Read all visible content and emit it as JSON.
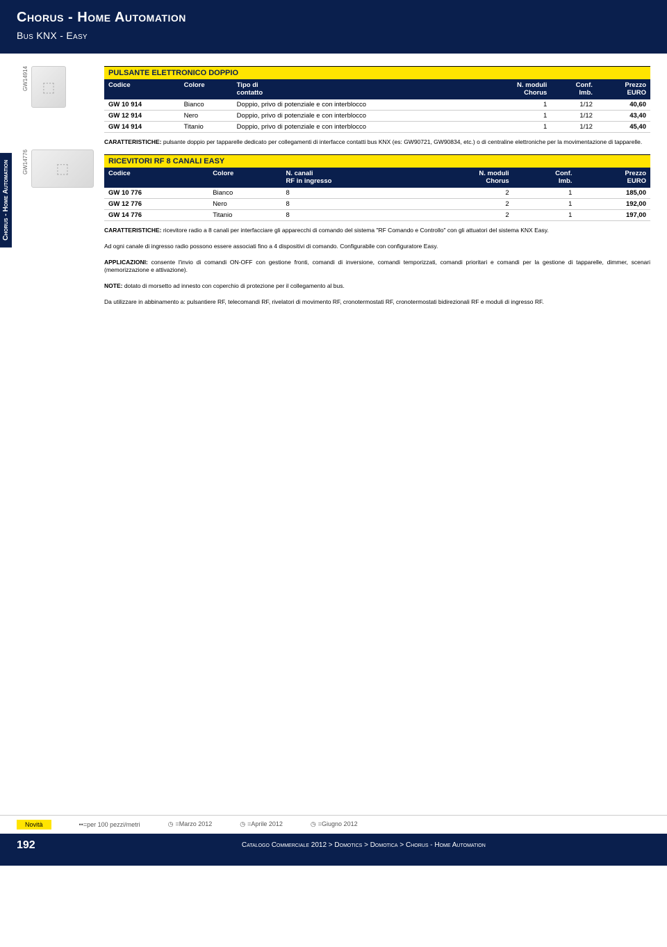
{
  "header": {
    "title": "Chorus - Home Automation",
    "subtitle": "Bus KNX - Easy"
  },
  "side_tab": "Chorus - Home Automation",
  "thumbs": [
    {
      "label": "GW14914",
      "wide": false
    },
    {
      "label": "GW14776",
      "wide": true
    }
  ],
  "sections": [
    {
      "title": "PULSANTE ELETTRONICO DOPPIO",
      "columns": [
        {
          "line1": "Codice",
          "line2": "",
          "align": "l"
        },
        {
          "line1": "Colore",
          "line2": "",
          "align": "l"
        },
        {
          "line1": "Tipo di",
          "line2": "contatto",
          "align": "l"
        },
        {
          "line1": "N. moduli",
          "line2": "Chorus",
          "align": "r"
        },
        {
          "line1": "Conf.",
          "line2": "Imb.",
          "align": "r"
        },
        {
          "line1": "Prezzo",
          "line2": "EURO",
          "align": "r"
        }
      ],
      "rows": [
        [
          "GW 10 914",
          "Bianco",
          "Doppio, privo di potenziale e con interblocco",
          "1",
          "1/12",
          "40,60"
        ],
        [
          "GW 12 914",
          "Nero",
          "Doppio, privo di potenziale e con interblocco",
          "1",
          "1/12",
          "43,40"
        ],
        [
          "GW 14 914",
          "Titanio",
          "Doppio, privo di potenziale e con interblocco",
          "1",
          "1/12",
          "45,40"
        ]
      ],
      "bold_first": true,
      "bold_last": true,
      "notes": [
        {
          "label": "CARATTERISTICHE:",
          "text": "pulsante doppio per tapparelle dedicato per collegamenti di interfacce contatti bus KNX (es: GW90721, GW90834, etc.) o di centraline elettroniche per la movimentazione di tapparelle."
        }
      ]
    },
    {
      "title": "RICEVITORI RF 8 CANALI EASY",
      "columns": [
        {
          "line1": "Codice",
          "line2": "",
          "align": "l"
        },
        {
          "line1": "Colore",
          "line2": "",
          "align": "l"
        },
        {
          "line1": "N. canali",
          "line2": "RF in ingresso",
          "align": "l"
        },
        {
          "line1": "N. moduli",
          "line2": "Chorus",
          "align": "r"
        },
        {
          "line1": "Conf.",
          "line2": "Imb.",
          "align": "r"
        },
        {
          "line1": "Prezzo",
          "line2": "EURO",
          "align": "r"
        }
      ],
      "rows": [
        [
          "GW 10 776",
          "Bianco",
          "8",
          "2",
          "1",
          "185,00"
        ],
        [
          "GW 12 776",
          "Nero",
          "8",
          "2",
          "1",
          "192,00"
        ],
        [
          "GW 14 776",
          "Titanio",
          "8",
          "2",
          "1",
          "197,00"
        ]
      ],
      "bold_first": true,
      "bold_last": true,
      "notes": [
        {
          "label": "CARATTERISTICHE:",
          "text": "ricevitore radio a 8 canali per interfacciare gli apparecchi di comando del sistema \"RF Comando e Controllo\" con gli attuatori del sistema KNX Easy."
        },
        {
          "label": "",
          "text": "Ad ogni canale di ingresso radio possono essere associati fino a 4 dispositivi di comando. Configurabile con configuratore Easy."
        },
        {
          "label": "APPLICAZIONI:",
          "text": "consente l'invio di comandi ON-OFF con gestione fronti, comandi di inversione, comandi temporizzati, comandi prioritari e comandi per la gestione di tapparelle, dimmer, scenari (memorizzazione e attivazione)."
        },
        {
          "label": "NOTE:",
          "text": "dotato di morsetto ad innesto con coperchio di protezione per il collegamento al bus."
        },
        {
          "label": "",
          "text": "Da utilizzare in abbinamento a: pulsantiere RF, telecomandi RF, rivelatori di movimento RF, cronotermostati RF, cronotermostati bidirezionali RF e moduli di ingresso RF."
        }
      ]
    }
  ],
  "footer_bar": {
    "novita": "Novità",
    "per100": "••=per 100 pezzi/metri",
    "dates": [
      "=Marzo 2012",
      "=Aprile 2012",
      "=Giugno 2012"
    ]
  },
  "page_footer": {
    "page": "192",
    "breadcrumb": "Catalogo Commerciale 2012 > Domotics > Domotica > Chorus - Home Automation"
  }
}
